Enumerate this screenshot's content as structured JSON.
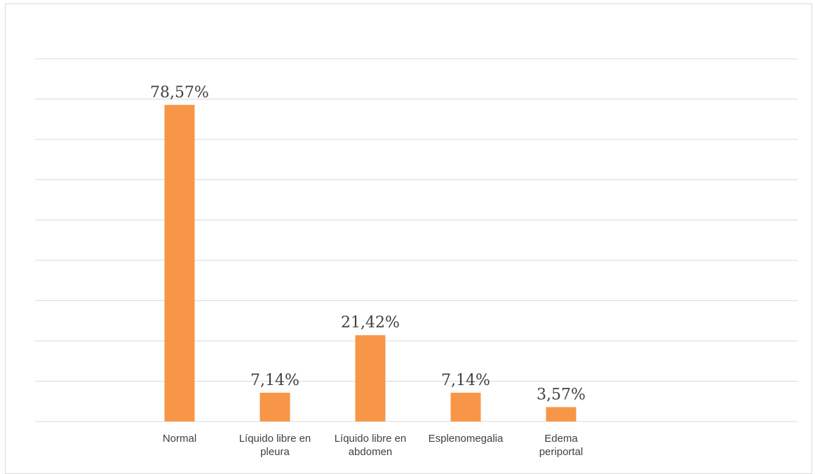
{
  "chart_data": {
    "type": "bar",
    "categories": [
      [
        "Normal"
      ],
      [
        "Líquido libre en",
        "pleura"
      ],
      [
        "Líquido libre en",
        "abdomen"
      ],
      [
        "Esplenomegalia"
      ],
      [
        "Edema",
        "periportal"
      ]
    ],
    "values": [
      78.57,
      7.14,
      21.42,
      7.14,
      3.57
    ],
    "data_labels": [
      "78,57%",
      "7,14%",
      "21,42%",
      "7,14%",
      "3,57%"
    ],
    "title": "",
    "xlabel": "",
    "ylabel": "",
    "ylim": [
      0,
      90
    ],
    "grid": true,
    "legend": "none",
    "colors": {
      "bar": "#F79646",
      "grid": "#d9d9d9",
      "text": "#404040"
    }
  }
}
